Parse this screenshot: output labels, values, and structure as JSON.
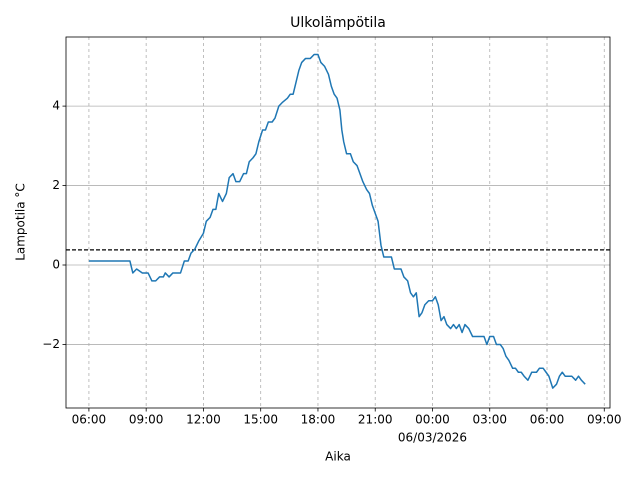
{
  "chart_data": {
    "type": "line",
    "title": "Ulkolämpötila",
    "xlabel": "Aika",
    "ylabel": "Lampotila °C",
    "x_date_label": "06/03/2026",
    "color": "#1f77b4",
    "x": [
      0,
      2.15,
      2.3,
      2.5,
      2.8,
      3.1,
      3.3,
      3.5,
      3.7,
      3.9,
      4.0,
      4.2,
      4.4,
      4.8,
      5.0,
      5.2,
      5.35,
      5.55,
      5.75,
      6.0,
      6.15,
      6.35,
      6.5,
      6.65,
      6.8,
      7.0,
      7.2,
      7.35,
      7.55,
      7.7,
      7.9,
      8.1,
      8.25,
      8.4,
      8.6,
      8.75,
      8.9,
      9.1,
      9.25,
      9.4,
      9.6,
      9.75,
      9.95,
      10.15,
      10.4,
      10.55,
      10.7,
      10.85,
      11.0,
      11.15,
      11.35,
      11.6,
      11.8,
      12.0,
      12.15,
      12.35,
      12.55,
      12.7,
      12.85,
      13.0,
      13.15,
      13.25,
      13.35,
      13.5,
      13.7,
      13.85,
      14.05,
      14.2,
      14.35,
      14.55,
      14.7,
      14.85,
      15.0,
      15.15,
      15.3,
      15.45,
      15.85,
      16.0,
      16.35,
      16.5,
      16.7,
      16.85,
      17.0,
      17.15,
      17.3,
      17.45,
      17.6,
      17.8,
      18.0,
      18.15,
      18.3,
      18.45,
      18.6,
      18.75,
      18.95,
      19.1,
      19.25,
      19.4,
      19.55,
      19.7,
      19.9,
      20.1,
      20.55,
      20.7,
      20.85,
      21.0,
      21.2,
      21.35,
      21.55,
      21.7,
      21.85,
      22.0,
      22.2,
      22.35,
      22.5,
      22.65,
      22.8,
      23.0,
      23.2,
      23.45,
      23.6,
      23.8,
      23.95,
      24.1,
      24.3,
      24.5,
      24.65,
      24.8,
      24.95,
      25.3,
      25.5,
      25.65,
      25.8,
      26.0
    ],
    "values": [
      0.1,
      0.1,
      -0.2,
      -0.1,
      -0.2,
      -0.2,
      -0.4,
      -0.4,
      -0.3,
      -0.3,
      -0.2,
      -0.3,
      -0.2,
      -0.2,
      0.1,
      0.1,
      0.3,
      0.4,
      0.6,
      0.8,
      1.1,
      1.2,
      1.4,
      1.4,
      1.8,
      1.6,
      1.8,
      2.2,
      2.3,
      2.1,
      2.1,
      2.3,
      2.3,
      2.6,
      2.7,
      2.8,
      3.1,
      3.4,
      3.4,
      3.6,
      3.6,
      3.7,
      4.0,
      4.1,
      4.2,
      4.3,
      4.3,
      4.6,
      4.9,
      5.1,
      5.2,
      5.2,
      5.3,
      5.3,
      5.1,
      5.0,
      4.8,
      4.5,
      4.3,
      4.2,
      3.9,
      3.4,
      3.1,
      2.8,
      2.8,
      2.6,
      2.5,
      2.3,
      2.1,
      1.9,
      1.8,
      1.5,
      1.3,
      1.1,
      0.5,
      0.2,
      0.2,
      -0.1,
      -0.1,
      -0.3,
      -0.4,
      -0.7,
      -0.8,
      -0.7,
      -1.3,
      -1.2,
      -1.0,
      -0.9,
      -0.9,
      -0.8,
      -1.0,
      -1.4,
      -1.3,
      -1.5,
      -1.6,
      -1.5,
      -1.6,
      -1.5,
      -1.7,
      -1.5,
      -1.6,
      -1.8,
      -1.8,
      -1.8,
      -2.0,
      -1.8,
      -1.8,
      -2.0,
      -2.0,
      -2.1,
      -2.3,
      -2.4,
      -2.6,
      -2.6,
      -2.7,
      -2.7,
      -2.8,
      -2.9,
      -2.7,
      -2.7,
      -2.6,
      -2.6,
      -2.7,
      -2.8,
      -3.1,
      -3.0,
      -2.8,
      -2.7,
      -2.8,
      -2.8,
      -2.9,
      -2.8,
      -2.9,
      -3.0
    ],
    "hline": 0.38,
    "hline_color": "#000000",
    "xlim": [
      -1.2,
      27.3
    ],
    "xticks": [
      {
        "value": 0,
        "label": "06:00"
      },
      {
        "value": 3,
        "label": "09:00"
      },
      {
        "value": 6,
        "label": "12:00"
      },
      {
        "value": 9,
        "label": "15:00"
      },
      {
        "value": 12,
        "label": "18:00"
      },
      {
        "value": 15,
        "label": "21:00"
      },
      {
        "value": 18,
        "label": "00:00"
      },
      {
        "value": 21,
        "label": "03:00"
      },
      {
        "value": 24,
        "label": "06:00"
      },
      {
        "value": 27,
        "label": "09:00"
      }
    ],
    "ylim": [
      -3.6,
      5.74
    ],
    "yticks": [
      {
        "value": -2,
        "label": "−2"
      },
      0,
      2,
      4
    ],
    "grid": true
  }
}
